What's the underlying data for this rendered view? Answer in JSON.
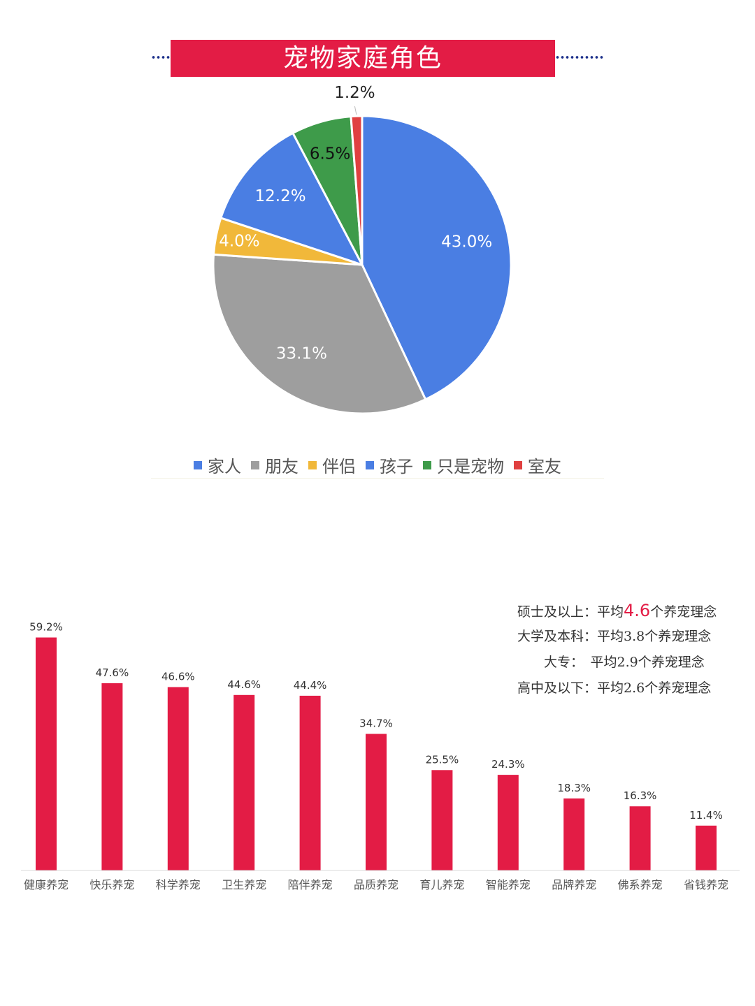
{
  "title": "宠物家庭角色",
  "colors": {
    "accent": "#e31c45",
    "dots": "#1b2f8a"
  },
  "chart_data": [
    {
      "type": "pie",
      "title": "宠物家庭角色",
      "legend_position": "bottom",
      "slices": [
        {
          "label": "家人",
          "value": 43.0,
          "value_label": "43.0%",
          "color": "#4a7ee3"
        },
        {
          "label": "朋友",
          "value": 33.1,
          "value_label": "33.1%",
          "color": "#9e9e9e"
        },
        {
          "label": "伴侣",
          "value": 4.0,
          "value_label": "4.0%",
          "color": "#f1b83a"
        },
        {
          "label": "孩子",
          "value": 12.2,
          "value_label": "12.2%",
          "color": "#4a7ee3"
        },
        {
          "label": "只是宠物",
          "value": 6.5,
          "value_label": "6.5%",
          "color": "#3e9b4a"
        },
        {
          "label": "室友",
          "value": 1.2,
          "value_label": "1.2%",
          "color": "#e04040"
        }
      ]
    },
    {
      "type": "bar",
      "categories": [
        "健康养宠",
        "快乐养宠",
        "科学养宠",
        "卫生养宠",
        "陪伴养宠",
        "品质养宠",
        "育儿养宠",
        "智能养宠",
        "品牌养宠",
        "佛系养宠",
        "省钱养宠"
      ],
      "values": [
        59.2,
        47.6,
        46.6,
        44.6,
        44.4,
        34.7,
        25.5,
        24.3,
        18.3,
        16.3,
        11.4
      ],
      "value_labels": [
        "59.2%",
        "47.6%",
        "46.6%",
        "44.6%",
        "44.4%",
        "34.7%",
        "25.5%",
        "24.3%",
        "18.3%",
        "16.3%",
        "11.4%"
      ],
      "ylim": [
        0,
        60
      ],
      "bar_color": "#e31c45",
      "grid": false
    }
  ],
  "annotations": [
    {
      "prefix": "硕士及以上：平均",
      "highlight": "4.6",
      "suffix": "个养宠理念"
    },
    {
      "prefix": "大学及本科：平均3.8个养宠理念",
      "highlight": "",
      "suffix": ""
    },
    {
      "prefix": "　　大专：　平均2.9个养宠理念",
      "highlight": "",
      "suffix": ""
    },
    {
      "prefix": "高中及以下：平均2.6个养宠理念",
      "highlight": "",
      "suffix": ""
    }
  ]
}
